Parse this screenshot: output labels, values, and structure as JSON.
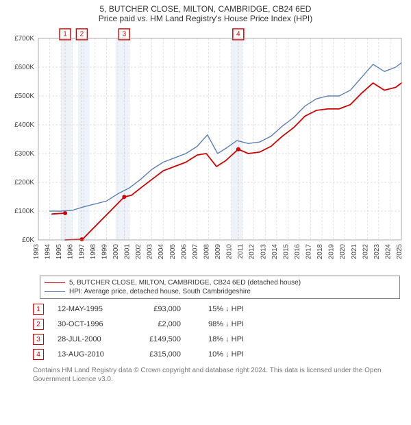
{
  "title_line1": "5, BUTCHER CLOSE, MILTON, CAMBRIDGE, CB24 6ED",
  "title_line2": "Price paid vs. HM Land Registry's House Price Index (HPI)",
  "chart": {
    "type": "line",
    "x_years": [
      1993,
      1994,
      1995,
      1996,
      1997,
      1998,
      1999,
      2000,
      2001,
      2002,
      2003,
      2004,
      2005,
      2006,
      2007,
      2008,
      2009,
      2010,
      2011,
      2012,
      2013,
      2014,
      2015,
      2016,
      2017,
      2018,
      2019,
      2020,
      2021,
      2022,
      2023,
      2024,
      2025
    ],
    "ylim": [
      0,
      700000
    ],
    "ytick_step": 100000,
    "ytick_labels": [
      "£0K",
      "£100K",
      "£200K",
      "£300K",
      "£400K",
      "£500K",
      "£600K",
      "£700K"
    ],
    "background_color": "#ffffff",
    "plot_bg": "#ffffff",
    "grid_color": "#d9d9d9",
    "grid_dash": "3,2",
    "shaded_bands": [
      {
        "from": 1995.0,
        "to": 1996.0,
        "color": "#eef3fa"
      },
      {
        "from": 1996.5,
        "to": 1997.5,
        "color": "#eef3fa"
      },
      {
        "from": 1999.8,
        "to": 2001.0,
        "color": "#eef3fa"
      },
      {
        "from": 2010.0,
        "to": 2011.0,
        "color": "#eef3fa"
      }
    ],
    "event_lines_color": "#f4c6c6",
    "series": [
      {
        "name": "price_paid",
        "label": "5, BUTCHER CLOSE, MILTON, CAMBRIDGE, CB24 6ED (detached house)",
        "color": "#d00000",
        "width": 1.8,
        "segments": [
          {
            "pts": [
              [
                1994.2,
                90000
              ],
              [
                1995.36,
                93000
              ]
            ]
          },
          {
            "pts": [
              [
                1995.36,
                0
              ],
              [
                1996.83,
                2000
              ]
            ]
          },
          {
            "pts": [
              [
                1996.83,
                0
              ],
              [
                2000.57,
                149500
              ]
            ]
          },
          {
            "pts": [
              [
                2000.57,
                149500
              ],
              [
                2001.2,
                155000
              ],
              [
                2002.0,
                180000
              ],
              [
                2003.0,
                210000
              ],
              [
                2004.0,
                240000
              ],
              [
                2005.0,
                255000
              ],
              [
                2006.0,
                270000
              ],
              [
                2007.0,
                295000
              ],
              [
                2007.8,
                300000
              ],
              [
                2008.7,
                255000
              ],
              [
                2009.5,
                275000
              ],
              [
                2010.62,
                315000
              ],
              [
                2011.5,
                300000
              ],
              [
                2012.5,
                305000
              ],
              [
                2013.5,
                325000
              ],
              [
                2014.5,
                360000
              ],
              [
                2015.5,
                390000
              ],
              [
                2016.5,
                430000
              ],
              [
                2017.5,
                450000
              ],
              [
                2018.5,
                455000
              ],
              [
                2019.5,
                455000
              ],
              [
                2020.5,
                470000
              ],
              [
                2021.5,
                510000
              ],
              [
                2022.5,
                545000
              ],
              [
                2023.5,
                520000
              ],
              [
                2024.5,
                530000
              ],
              [
                2025.0,
                545000
              ]
            ]
          }
        ],
        "markers": [
          [
            1995.36,
            93000
          ],
          [
            1996.83,
            2000
          ],
          [
            2000.57,
            149500
          ],
          [
            2010.62,
            315000
          ]
        ]
      },
      {
        "name": "hpi",
        "label": "HPI: Average price, detached house, South Cambridgeshire",
        "color": "#5b7fb4",
        "width": 1.4,
        "segments": [
          {
            "pts": [
              [
                1994.0,
                100000
              ],
              [
                1995.0,
                100000
              ],
              [
                1996.0,
                103000
              ],
              [
                1997.0,
                115000
              ],
              [
                1998.0,
                125000
              ],
              [
                1999.0,
                135000
              ],
              [
                2000.0,
                160000
              ],
              [
                2001.0,
                180000
              ],
              [
                2002.0,
                210000
              ],
              [
                2003.0,
                245000
              ],
              [
                2004.0,
                270000
              ],
              [
                2005.0,
                285000
              ],
              [
                2006.0,
                300000
              ],
              [
                2007.0,
                325000
              ],
              [
                2007.9,
                365000
              ],
              [
                2008.8,
                300000
              ],
              [
                2009.6,
                320000
              ],
              [
                2010.5,
                345000
              ],
              [
                2011.5,
                335000
              ],
              [
                2012.5,
                340000
              ],
              [
                2013.5,
                360000
              ],
              [
                2014.5,
                395000
              ],
              [
                2015.5,
                425000
              ],
              [
                2016.5,
                465000
              ],
              [
                2017.5,
                490000
              ],
              [
                2018.5,
                500000
              ],
              [
                2019.5,
                500000
              ],
              [
                2020.5,
                520000
              ],
              [
                2021.5,
                565000
              ],
              [
                2022.5,
                610000
              ],
              [
                2023.5,
                585000
              ],
              [
                2024.5,
                600000
              ],
              [
                2025.0,
                615000
              ]
            ]
          }
        ]
      }
    ],
    "event_markers": [
      {
        "num": "1",
        "year": 1995.36
      },
      {
        "num": "2",
        "year": 1996.83
      },
      {
        "num": "3",
        "year": 2000.57
      },
      {
        "num": "4",
        "year": 2010.62
      }
    ]
  },
  "legend": [
    {
      "color": "#d00000",
      "text": "5, BUTCHER CLOSE, MILTON, CAMBRIDGE, CB24 6ED (detached house)"
    },
    {
      "color": "#5b7fb4",
      "text": "HPI: Average price, detached house, South Cambridgeshire"
    }
  ],
  "transactions": [
    {
      "num": "1",
      "date": "12-MAY-1995",
      "price": "£93,000",
      "pct": "15% ↓ HPI"
    },
    {
      "num": "2",
      "date": "30-OCT-1996",
      "price": "£2,000",
      "pct": "98% ↓ HPI"
    },
    {
      "num": "3",
      "date": "28-JUL-2000",
      "price": "£149,500",
      "pct": "18% ↓ HPI"
    },
    {
      "num": "4",
      "date": "13-AUG-2010",
      "price": "£315,000",
      "pct": "10% ↓ HPI"
    }
  ],
  "fineprint": "Contains HM Land Registry data © Crown copyright and database right 2024. This data is licensed under the Open Government Licence v3.0."
}
